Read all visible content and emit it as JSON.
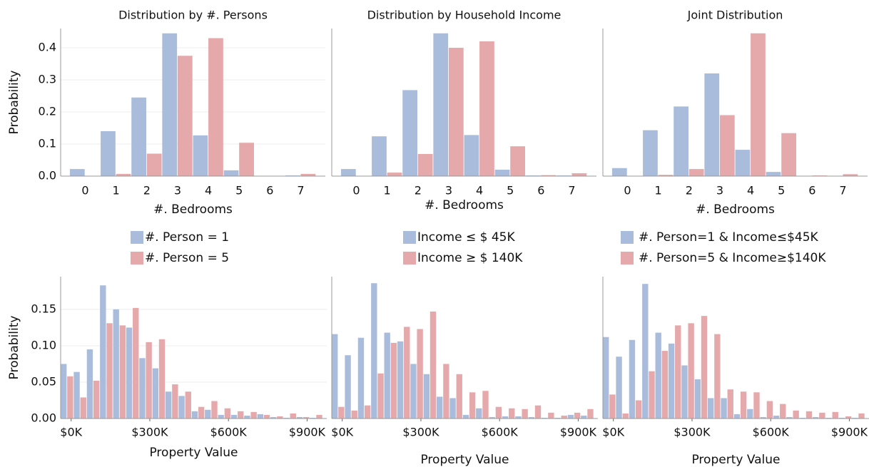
{
  "chart_data": [
    {
      "type": "bar",
      "title": "Distribution by #. Persons",
      "xlabel": "#. Bedrooms",
      "ylabel": "Probability",
      "categories": [
        "0",
        "1",
        "2",
        "3",
        "4",
        "5",
        "6",
        "7"
      ],
      "series": [
        {
          "name": "#. Person = 1",
          "color": "#a9bcdc",
          "values": [
            0.022,
            0.14,
            0.245,
            0.445,
            0.127,
            0.018,
            0.001,
            0.002
          ]
        },
        {
          "name": "#. Person = 5",
          "color": "#e6a9ab",
          "values": [
            0.0,
            0.007,
            0.07,
            0.375,
            0.43,
            0.104,
            0.001,
            0.007
          ]
        }
      ],
      "ylim": [
        0,
        0.46
      ],
      "yticks": [
        {
          "value": 0,
          "label": "0.0"
        },
        0.1,
        0.2,
        0.3,
        0.4
      ],
      "grid": true
    },
    {
      "type": "bar",
      "title": "Distribution by Household Income",
      "xlabel": "#. Bedrooms",
      "categories": [
        "0",
        "1",
        "2",
        "3",
        "4",
        "5",
        "6",
        "7"
      ],
      "series": [
        {
          "name": "Income ≤ $ 45K",
          "color": "#a9bcdc",
          "values": [
            0.022,
            0.124,
            0.268,
            0.445,
            0.128,
            0.02,
            0.002,
            0.002
          ]
        },
        {
          "name": "Income ≥ $ 140K",
          "color": "#e6a9ab",
          "values": [
            0.0,
            0.011,
            0.069,
            0.4,
            0.42,
            0.093,
            0.003,
            0.009
          ]
        }
      ],
      "ylim": [
        0,
        0.46
      ]
    },
    {
      "type": "bar",
      "title": "Joint Distribution",
      "xlabel": "#. Bedrooms",
      "categories": [
        "0",
        "1",
        "2",
        "3",
        "4",
        "5",
        "6",
        "7"
      ],
      "series": [
        {
          "name": "#. Person=1 & Income≤$45K",
          "color": "#a9bcdc",
          "values": [
            0.025,
            0.143,
            0.217,
            0.32,
            0.082,
            0.013,
            0.001,
            0.001
          ]
        },
        {
          "name": "#. Person=5 & Income≥$140K",
          "color": "#e6a9ab",
          "values": [
            0.0,
            0.004,
            0.022,
            0.19,
            0.445,
            0.134,
            0.002,
            0.006
          ]
        }
      ],
      "ylim": [
        0,
        0.46
      ]
    },
    {
      "type": "histogram",
      "xlabel": "Property Value",
      "ylabel": "Probability",
      "bins": [
        -40000,
        10000,
        60000,
        110000,
        160000,
        210000,
        260000,
        310000,
        360000,
        410000,
        460000,
        510000,
        560000,
        610000,
        660000,
        710000,
        760000,
        810000,
        860000,
        910000,
        960000
      ],
      "series": [
        {
          "color": "#a9bcdc",
          "values": [
            0.075,
            0.064,
            0.095,
            0.183,
            0.15,
            0.125,
            0.083,
            0.069,
            0.037,
            0.031,
            0.01,
            0.012,
            0.005,
            0.005,
            0.004,
            0.006,
            0.002,
            0.001,
            0.002,
            0.001
          ]
        },
        {
          "color": "#e6a9ab",
          "values": [
            0.058,
            0.029,
            0.052,
            0.131,
            0.128,
            0.152,
            0.105,
            0.109,
            0.047,
            0.037,
            0.016,
            0.024,
            0.014,
            0.01,
            0.009,
            0.005,
            0.003,
            0.007,
            0.002,
            0.005
          ]
        }
      ],
      "xlim": [
        -40000,
        975000
      ],
      "xticks": [
        {
          "value": 0,
          "label": "$0K"
        },
        {
          "value": 300000,
          "label": "$300K"
        },
        {
          "value": 600000,
          "label": "$600K"
        },
        {
          "value": 900000,
          "label": "$900K"
        }
      ],
      "ylim": [
        0,
        0.195
      ],
      "yticks": [
        {
          "value": 0,
          "label": "0.00"
        },
        {
          "value": 0.05,
          "label": "0.05"
        },
        {
          "value": 0.1,
          "label": "0.10"
        },
        {
          "value": 0.15,
          "label": "0.15"
        }
      ],
      "grid": true
    },
    {
      "type": "histogram",
      "xlabel": "Property Value",
      "bins": [
        -40000,
        10000,
        60000,
        110000,
        160000,
        210000,
        260000,
        310000,
        360000,
        410000,
        460000,
        510000,
        560000,
        610000,
        660000,
        710000,
        760000,
        810000,
        860000,
        910000,
        960000
      ],
      "series": [
        {
          "color": "#a9bcdc",
          "values": [
            0.116,
            0.087,
            0.111,
            0.186,
            0.118,
            0.106,
            0.075,
            0.061,
            0.03,
            0.028,
            0.005,
            0.014,
            0.002,
            0.003,
            0.003,
            0.002,
            0.001,
            0.001,
            0.005,
            0.004
          ]
        },
        {
          "color": "#e6a9ab",
          "values": [
            0.016,
            0.011,
            0.018,
            0.062,
            0.104,
            0.126,
            0.123,
            0.147,
            0.075,
            0.061,
            0.036,
            0.038,
            0.016,
            0.014,
            0.013,
            0.018,
            0.008,
            0.004,
            0.008,
            0.013
          ]
        }
      ],
      "xlim": [
        -40000,
        975000
      ],
      "xticks": [
        {
          "value": 0,
          "label": "$0K"
        },
        {
          "value": 300000,
          "label": "$300K"
        },
        {
          "value": 600000,
          "label": "$600K"
        },
        {
          "value": 900000,
          "label": "$900K"
        }
      ],
      "ylim": [
        0,
        0.195
      ]
    },
    {
      "type": "histogram",
      "xlabel": "Property Value",
      "bins": [
        -40000,
        10000,
        60000,
        110000,
        160000,
        210000,
        260000,
        310000,
        360000,
        410000,
        460000,
        510000,
        560000,
        610000,
        660000,
        710000,
        760000,
        810000,
        860000,
        910000,
        960000
      ],
      "series": [
        {
          "color": "#a9bcdc",
          "values": [
            0.112,
            0.085,
            0.108,
            0.185,
            0.118,
            0.103,
            0.073,
            0.054,
            0.028,
            0.028,
            0.006,
            0.013,
            0.002,
            0.004,
            0.002,
            0.001,
            0.002,
            0.001,
            0.001,
            0.001
          ]
        },
        {
          "color": "#e6a9ab",
          "values": [
            0.033,
            0.007,
            0.025,
            0.065,
            0.093,
            0.128,
            0.131,
            0.141,
            0.116,
            0.04,
            0.037,
            0.036,
            0.024,
            0.02,
            0.011,
            0.01,
            0.008,
            0.009,
            0.003,
            0.007
          ]
        }
      ],
      "xlim": [
        -40000,
        975000
      ],
      "xticks": [
        {
          "value": 0,
          "label": "$0K"
        },
        {
          "value": 300000,
          "label": "$300K"
        },
        {
          "value": 600000,
          "label": "$600K"
        },
        {
          "value": 900000,
          "label": "$900K"
        }
      ],
      "ylim": [
        0,
        0.195
      ]
    }
  ]
}
